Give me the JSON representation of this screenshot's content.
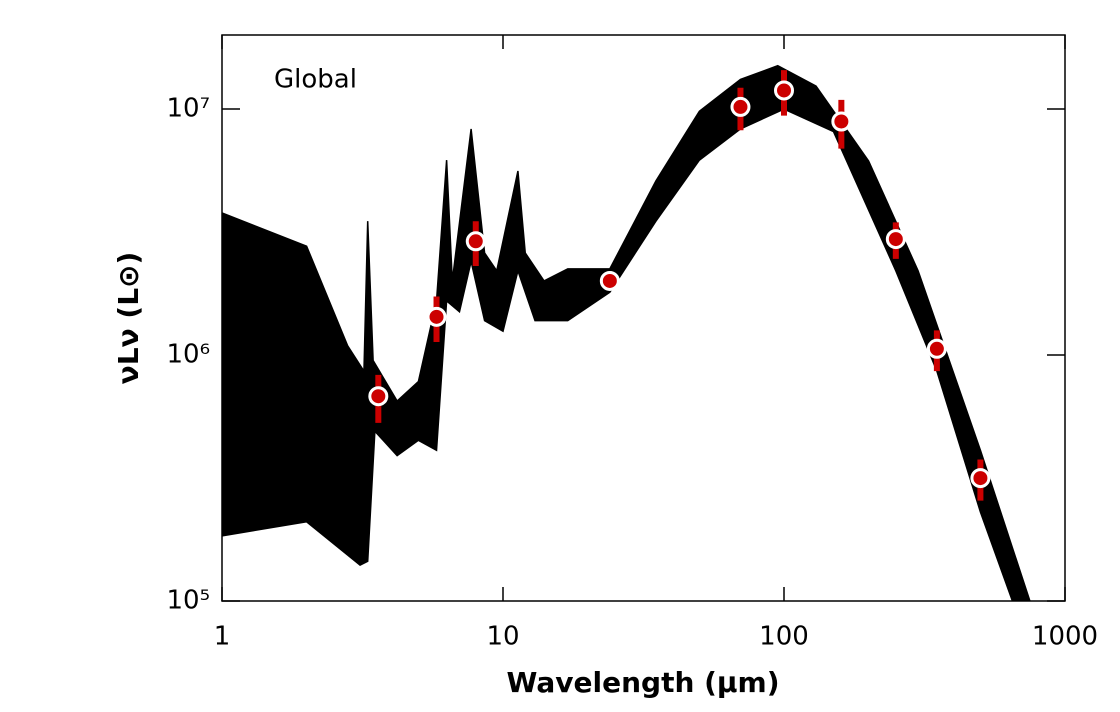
{
  "chart_data": {
    "type": "scatter",
    "annotation": "Global",
    "x_label": "Wavelength (μm)",
    "y_label": "νLν (L⊙)",
    "x_scale": "log",
    "y_scale": "log",
    "xlim": [
      1,
      1000
    ],
    "ylim": [
      100000,
      20000000
    ],
    "xticks": [
      1,
      10,
      100,
      1000
    ],
    "yticks": [
      {
        "value": 100000,
        "label": "10⁵"
      },
      {
        "value": 1000000,
        "label": "10⁶"
      },
      {
        "value": 10000000,
        "label": "10⁷"
      }
    ],
    "model_color": "#000000",
    "series": [
      {
        "type": "line",
        "color": "#000000",
        "x": [
          1,
          2,
          2.8,
          3.2,
          3.3,
          3.45,
          4.2,
          5,
          5.8,
          6.3,
          6.6,
          7.7,
          8.6,
          9.5,
          11.3,
          12,
          14,
          17,
          24,
          35,
          50,
          70,
          95,
          130,
          200,
          300,
          500,
          750
        ],
        "values": [
          3780000,
          2770000,
          1090000,
          860000,
          3500000,
          950000,
          650000,
          780000,
          1660000,
          6200000,
          2000000,
          8300000,
          2600000,
          2200000,
          5600000,
          2600000,
          2000000,
          2240000,
          2240000,
          5100000,
          9800000,
          13200000,
          15000000,
          12400000,
          6150000,
          2200000,
          410000,
          100000
        ]
      },
      {
        "type": "line",
        "color": "#000000",
        "x": [
          1,
          2,
          3.1,
          3.3,
          3.5,
          4.2,
          5,
          5.8,
          6.3,
          7,
          7.7,
          8.6,
          10,
          11.3,
          13,
          17,
          24,
          35,
          50,
          70,
          100,
          150,
          250,
          350,
          500,
          650
        ],
        "values": [
          184000,
          210000,
          140000,
          145000,
          490000,
          390000,
          450000,
          410000,
          1660000,
          1500000,
          2400000,
          1380000,
          1250000,
          2200000,
          1380000,
          1380000,
          1800000,
          3500000,
          6200000,
          8300000,
          10000000,
          8100000,
          2200000,
          860000,
          230000,
          100000
        ]
      },
      {
        "type": "points",
        "color": "#cc0000",
        "x": [
          3.6,
          5.8,
          8,
          24,
          70,
          100,
          160,
          250,
          350,
          500
        ],
        "values": [
          680000,
          1430000,
          2900000,
          2000000,
          10200000,
          11900000,
          8900000,
          2960000,
          1060000,
          316000
        ],
        "errors": [
          150000,
          300000,
          600000,
          100000,
          2000000,
          2500000,
          2000000,
          500000,
          200000,
          60000
        ]
      }
    ]
  }
}
